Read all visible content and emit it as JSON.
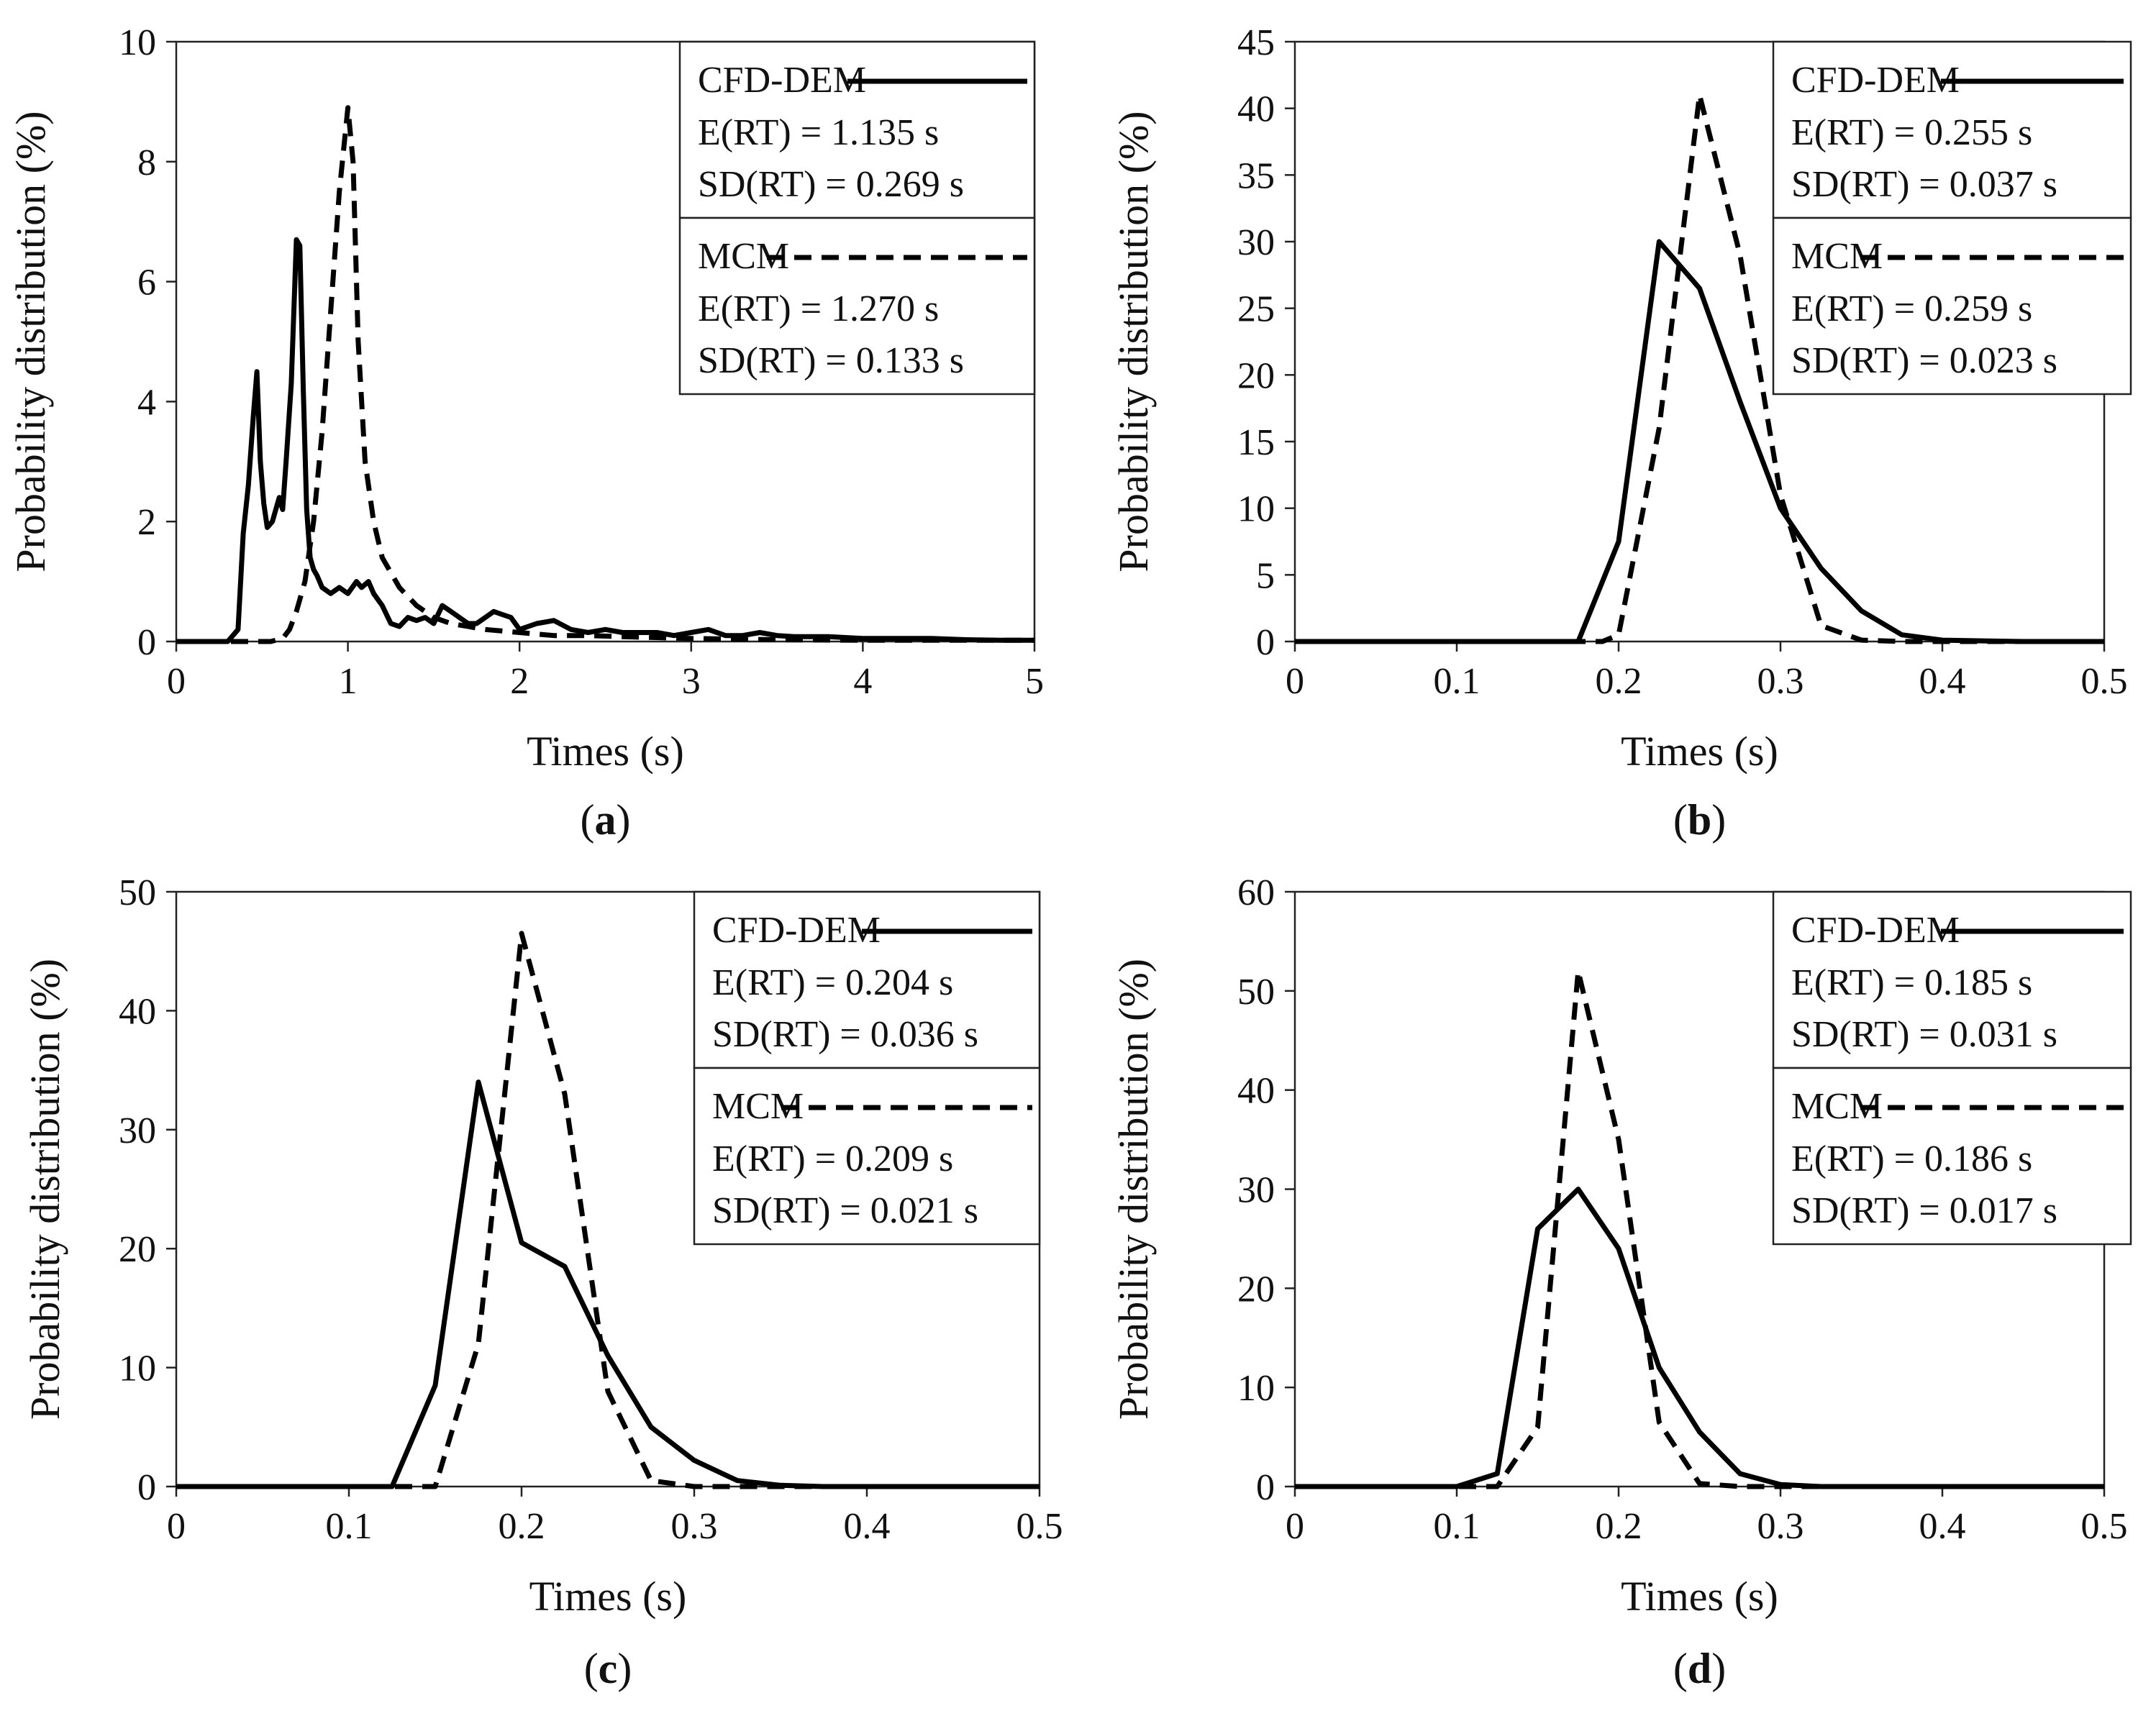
{
  "colors": {
    "line": "#000000",
    "background": "#ffffff"
  },
  "chart_data": [
    {
      "type": "line",
      "panel_label": "a",
      "xlabel": "Times (s)",
      "ylabel": "Probability distribution (%)",
      "xlim": [
        0,
        5
      ],
      "ylim": [
        0,
        10
      ],
      "xticks": [
        "0",
        "1",
        "2",
        "3",
        "4",
        "5"
      ],
      "yticks": [
        "0",
        "2",
        "4",
        "6",
        "8",
        "10"
      ],
      "legend_position": "top-right",
      "series": [
        {
          "name": "CFD-DEM",
          "style": "solid",
          "stats": [
            "E(RT) = 1.135 s",
            "SD(RT) = 0.269 s"
          ],
          "x": [
            0,
            0.3,
            0.36,
            0.39,
            0.42,
            0.45,
            0.47,
            0.49,
            0.51,
            0.53,
            0.56,
            0.6,
            0.62,
            0.64,
            0.67,
            0.7,
            0.72,
            0.74,
            0.76,
            0.78,
            0.8,
            0.82,
            0.85,
            0.9,
            0.95,
            1.0,
            1.05,
            1.08,
            1.12,
            1.15,
            1.2,
            1.25,
            1.3,
            1.35,
            1.4,
            1.45,
            1.5,
            1.55,
            1.6,
            1.65,
            1.7,
            1.75,
            1.8,
            1.85,
            1.9,
            1.95,
            2.0,
            2.1,
            2.2,
            2.3,
            2.4,
            2.5,
            2.6,
            2.7,
            2.8,
            2.9,
            3.0,
            3.1,
            3.2,
            3.3,
            3.4,
            3.5,
            3.6,
            3.8,
            4.0,
            4.2,
            4.4,
            4.6,
            4.8,
            5.0
          ],
          "values": [
            0,
            0,
            0.2,
            1.8,
            2.6,
            3.8,
            4.5,
            3.0,
            2.3,
            1.9,
            2.0,
            2.4,
            2.2,
            3.0,
            4.3,
            6.7,
            6.6,
            4.2,
            2.2,
            1.4,
            1.2,
            1.1,
            0.9,
            0.8,
            0.9,
            0.8,
            1.0,
            0.9,
            1.0,
            0.8,
            0.6,
            0.3,
            0.25,
            0.4,
            0.35,
            0.4,
            0.3,
            0.6,
            0.5,
            0.4,
            0.3,
            0.3,
            0.4,
            0.5,
            0.45,
            0.4,
            0.2,
            0.3,
            0.35,
            0.2,
            0.15,
            0.2,
            0.15,
            0.15,
            0.15,
            0.1,
            0.15,
            0.2,
            0.1,
            0.1,
            0.15,
            0.1,
            0.08,
            0.08,
            0.05,
            0.05,
            0.05,
            0.03,
            0.02,
            0.02
          ]
        },
        {
          "name": "MCM",
          "style": "dashed",
          "stats": [
            "E(RT) = 1.270 s",
            "SD(RT) = 0.133 s"
          ],
          "x": [
            0,
            0.55,
            0.62,
            0.66,
            0.7,
            0.75,
            0.8,
            0.85,
            0.9,
            0.95,
            1.0,
            1.03,
            1.06,
            1.1,
            1.15,
            1.2,
            1.3,
            1.4,
            1.5,
            1.6,
            1.7,
            1.8,
            2.0,
            2.2,
            2.4,
            2.6,
            3.0,
            3.5,
            4.0,
            4.5,
            5.0
          ],
          "values": [
            0,
            0,
            0.05,
            0.2,
            0.5,
            1.0,
            2.0,
            3.5,
            5.5,
            7.5,
            8.9,
            8.0,
            5.0,
            3.0,
            2.0,
            1.4,
            0.9,
            0.6,
            0.4,
            0.3,
            0.25,
            0.2,
            0.15,
            0.1,
            0.1,
            0.08,
            0.05,
            0.03,
            0.02,
            0.02,
            0.02
          ]
        }
      ]
    },
    {
      "type": "line",
      "panel_label": "b",
      "xlabel": "Times (s)",
      "ylabel": "Probability distribution (%)",
      "xlim": [
        0,
        0.5
      ],
      "ylim": [
        0,
        45
      ],
      "xticks": [
        "0",
        "0.1",
        "0.2",
        "0.3",
        "0.4",
        "0.5"
      ],
      "yticks": [
        "0",
        "5",
        "10",
        "15",
        "20",
        "25",
        "30",
        "35",
        "40",
        "45"
      ],
      "legend_position": "top-right",
      "series": [
        {
          "name": "CFD-DEM",
          "style": "solid",
          "stats": [
            "E(RT) = 0.255 s",
            "SD(RT) = 0.037 s"
          ],
          "x": [
            0,
            0.175,
            0.2,
            0.225,
            0.25,
            0.275,
            0.3,
            0.325,
            0.35,
            0.375,
            0.4,
            0.425,
            0.45,
            0.475,
            0.5
          ],
          "values": [
            0,
            0,
            7.5,
            30,
            26.5,
            18,
            10,
            5.5,
            2.3,
            0.5,
            0.1,
            0.05,
            0,
            0,
            0
          ]
        },
        {
          "name": "MCM",
          "style": "dashed",
          "stats": [
            "E(RT) = 0.259 s",
            "SD(RT) = 0.023 s"
          ],
          "x": [
            0,
            0.19,
            0.2,
            0.225,
            0.25,
            0.275,
            0.3,
            0.325,
            0.35,
            0.375,
            0.4,
            0.5
          ],
          "values": [
            0,
            0,
            0.5,
            16,
            41,
            29,
            11,
            1.2,
            0.1,
            0,
            0,
            0
          ]
        }
      ]
    },
    {
      "type": "line",
      "panel_label": "c",
      "xlabel": "Times (s)",
      "ylabel": "Probability distribution (%)",
      "xlim": [
        0,
        0.5
      ],
      "ylim": [
        0,
        50
      ],
      "xticks": [
        "0",
        "0.1",
        "0.2",
        "0.3",
        "0.4",
        "0.5"
      ],
      "yticks": [
        "0",
        "10",
        "20",
        "30",
        "40",
        "50"
      ],
      "legend_position": "top-right",
      "series": [
        {
          "name": "CFD-DEM",
          "style": "solid",
          "stats": [
            "E(RT) = 0.204 s",
            "SD(RT) = 0.036 s"
          ],
          "x": [
            0,
            0.125,
            0.15,
            0.175,
            0.2,
            0.225,
            0.25,
            0.275,
            0.3,
            0.325,
            0.35,
            0.375,
            0.5
          ],
          "values": [
            0,
            0,
            8.5,
            34,
            20.5,
            18.5,
            11,
            5,
            2.2,
            0.5,
            0.1,
            0,
            0
          ]
        },
        {
          "name": "MCM",
          "style": "dashed",
          "stats": [
            "E(RT) = 0.209 s",
            "SD(RT) = 0.021 s"
          ],
          "x": [
            0,
            0.15,
            0.175,
            0.2,
            0.225,
            0.25,
            0.275,
            0.3,
            0.35,
            0.5
          ],
          "values": [
            0,
            0,
            12,
            46.5,
            33,
            8,
            0.5,
            0,
            0,
            0
          ]
        }
      ]
    },
    {
      "type": "line",
      "panel_label": "d",
      "xlabel": "Times (s)",
      "ylabel": "Probability distribution (%)",
      "xlim": [
        0,
        0.5
      ],
      "ylim": [
        0,
        60
      ],
      "xticks": [
        "0",
        "0.1",
        "0.2",
        "0.3",
        "0.4",
        "0.5"
      ],
      "yticks": [
        "0",
        "10",
        "20",
        "30",
        "40",
        "50",
        "60"
      ],
      "legend_position": "top-right",
      "series": [
        {
          "name": "CFD-DEM",
          "style": "solid",
          "stats": [
            "E(RT) = 0.185 s",
            "SD(RT) = 0.031 s"
          ],
          "x": [
            0,
            0.1,
            0.125,
            0.15,
            0.175,
            0.2,
            0.225,
            0.25,
            0.275,
            0.3,
            0.325,
            0.5
          ],
          "values": [
            0,
            0,
            1.3,
            26,
            30,
            24,
            12,
            5.5,
            1.3,
            0.2,
            0,
            0
          ]
        },
        {
          "name": "MCM",
          "style": "dashed",
          "stats": [
            "E(RT) = 0.186 s",
            "SD(RT) = 0.017 s"
          ],
          "x": [
            0,
            0.125,
            0.15,
            0.175,
            0.2,
            0.225,
            0.25,
            0.275,
            0.3,
            0.5
          ],
          "values": [
            0,
            0,
            6,
            52,
            35,
            6.5,
            0.3,
            0,
            0,
            0
          ]
        }
      ]
    }
  ]
}
